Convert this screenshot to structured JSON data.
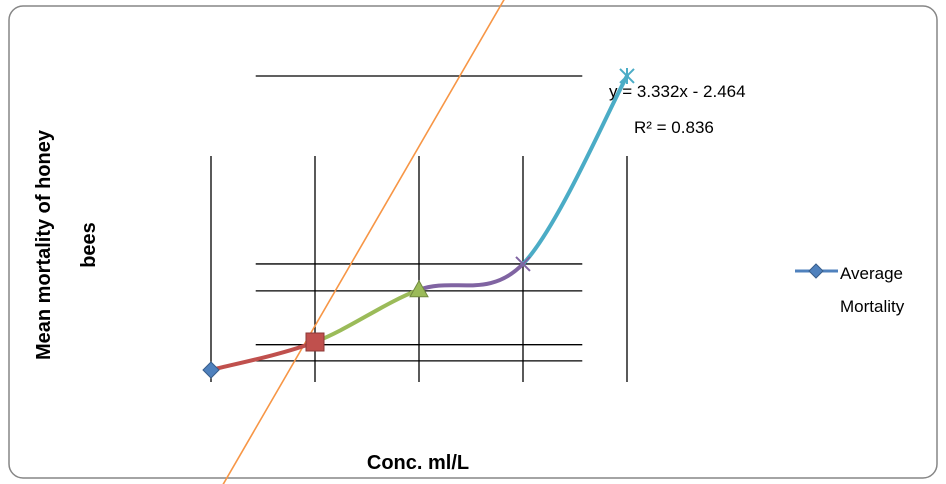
{
  "chart_data": {
    "type": "line",
    "xlabel": "Conc. ml/L",
    "ylabel_line1": "Mean mortality of honey",
    "ylabel_line2": "bees",
    "x": [
      1,
      2,
      3,
      4,
      5
    ],
    "series": [
      {
        "name": "Average Mortality",
        "values": [
          3.38,
          3.9,
          4.87,
          5.35,
          8.84
        ]
      }
    ],
    "legend": {
      "line1": "Average",
      "line2": "Mortality",
      "position": "right"
    },
    "segment_colors": [
      "#c0504d",
      "#9bbb59",
      "#8064a2",
      "#4bacc6"
    ],
    "marker_colors": [
      "#4f81bd",
      "#c0504d",
      "#9bbb59",
      "#8064a2",
      "#4bacc6"
    ],
    "markers": [
      "diamond",
      "square",
      "triangle",
      "x",
      "star"
    ],
    "trendline": {
      "type": "linear",
      "slope": 3.332,
      "intercept": -2.464,
      "color": "#f79646",
      "equation": "y = 3.332x - 2.464",
      "r_squared": "R² = 0.836"
    },
    "gridlines": {
      "horizontal_y": [
        3.55,
        3.85,
        4.85,
        5.35,
        8.84
      ],
      "vertical_x": [
        1,
        2,
        3,
        4,
        5
      ]
    }
  }
}
